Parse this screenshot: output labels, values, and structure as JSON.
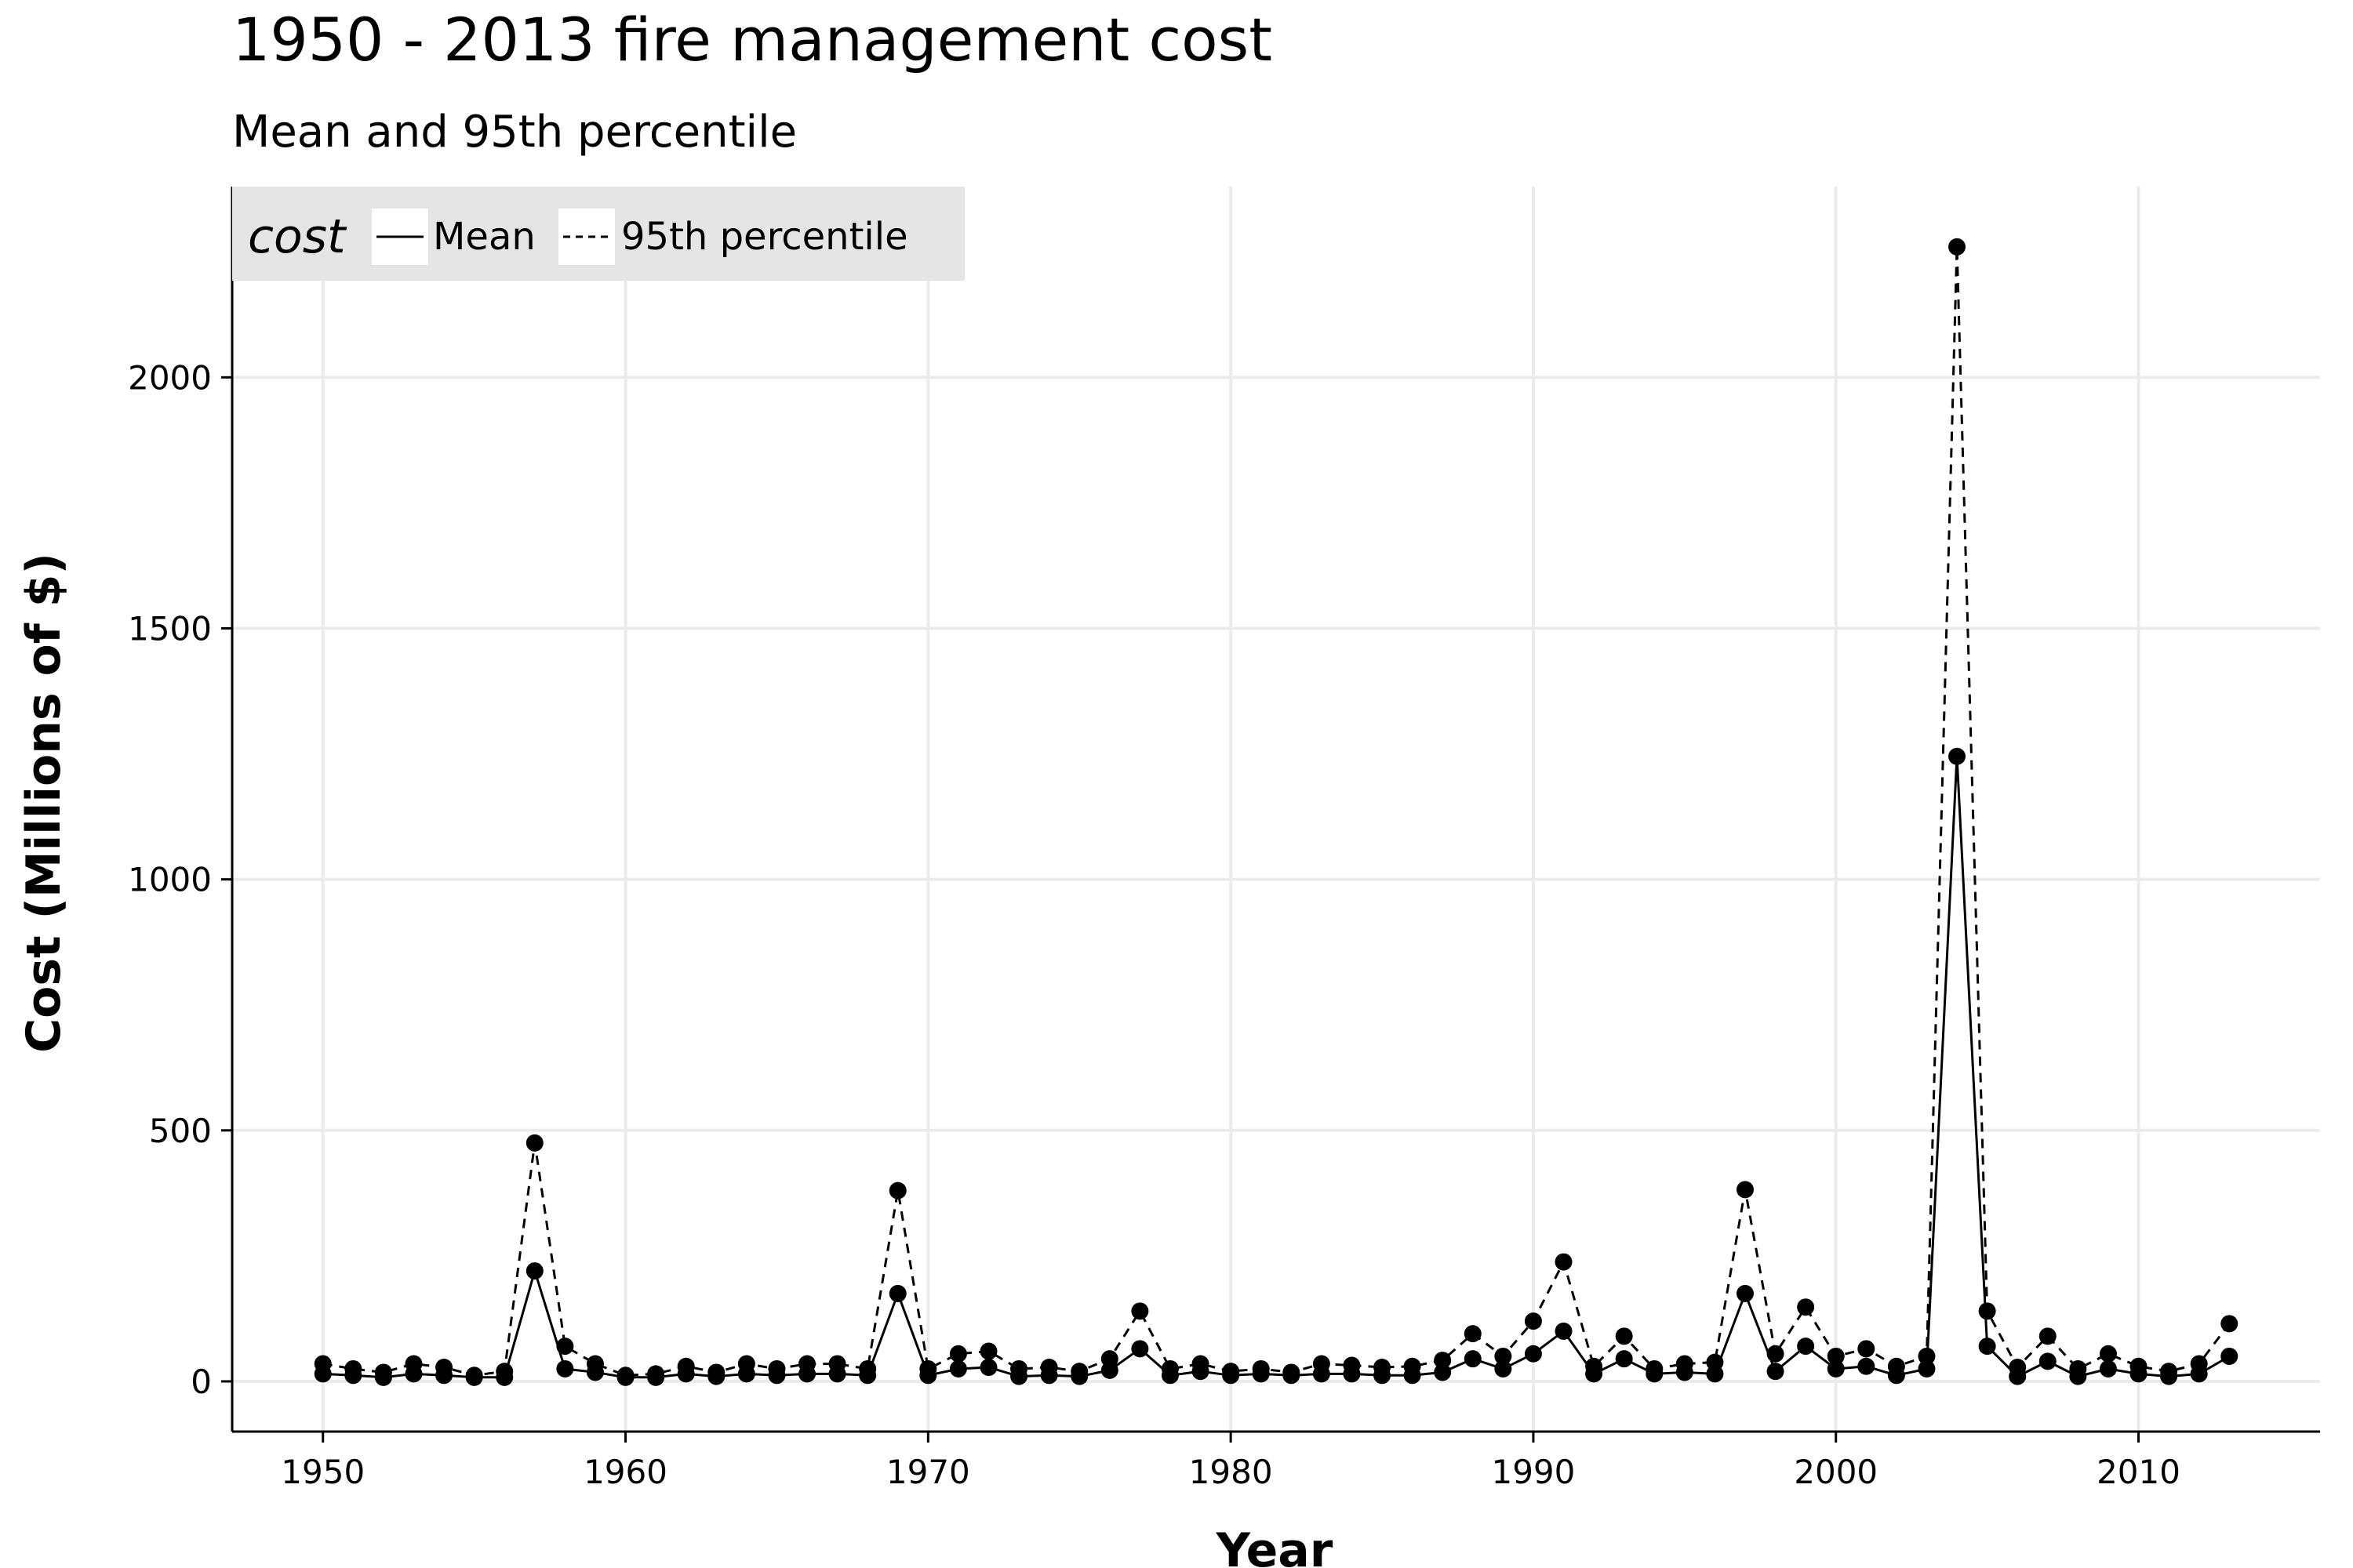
{
  "chart_data": {
    "type": "line",
    "title": "1950 - 2013 fire management cost",
    "subtitle": "Mean and 95th percentile",
    "xlabel": "Year",
    "ylabel": "Cost (Millions of $)",
    "xlim": [
      1947,
      2016
    ],
    "ylim": [
      -100,
      2380
    ],
    "x_ticks": [
      1950,
      1960,
      1970,
      1980,
      1990,
      2000,
      2010
    ],
    "y_ticks": [
      0,
      500,
      1000,
      1500,
      2000
    ],
    "grid": true,
    "legend": {
      "title": "cost",
      "placement": "top-left",
      "entries": [
        {
          "label": "Mean",
          "linestyle": "solid"
        },
        {
          "label": "95th percentile",
          "linestyle": "dashed"
        }
      ]
    },
    "x": [
      1950,
      1951,
      1952,
      1953,
      1954,
      1955,
      1956,
      1957,
      1958,
      1959,
      1960,
      1961,
      1962,
      1963,
      1964,
      1965,
      1966,
      1967,
      1968,
      1969,
      1970,
      1971,
      1972,
      1973,
      1974,
      1975,
      1976,
      1977,
      1978,
      1979,
      1980,
      1981,
      1982,
      1983,
      1984,
      1985,
      1986,
      1987,
      1988,
      1989,
      1990,
      1991,
      1992,
      1993,
      1994,
      1995,
      1996,
      1997,
      1998,
      1999,
      2000,
      2001,
      2002,
      2003,
      2004,
      2005,
      2006,
      2007,
      2008,
      2009,
      2010,
      2011,
      2012,
      2013
    ],
    "series": [
      {
        "name": "Mean",
        "linestyle": "solid",
        "color": "#000000",
        "values": [
          15,
          12,
          8,
          15,
          12,
          8,
          8,
          220,
          25,
          18,
          8,
          8,
          15,
          10,
          15,
          12,
          15,
          15,
          12,
          175,
          12,
          25,
          28,
          10,
          12,
          10,
          22,
          65,
          12,
          20,
          12,
          15,
          12,
          15,
          15,
          12,
          12,
          18,
          45,
          25,
          55,
          100,
          15,
          45,
          15,
          18,
          15,
          175,
          20,
          70,
          25,
          30,
          12,
          25,
          1245,
          70,
          10,
          40,
          10,
          25,
          15,
          10,
          15,
          50
        ]
      },
      {
        "name": "95th percentile",
        "linestyle": "dashed",
        "color": "#000000",
        "values": [
          35,
          25,
          18,
          35,
          28,
          12,
          20,
          475,
          70,
          35,
          12,
          15,
          30,
          18,
          35,
          25,
          35,
          35,
          25,
          380,
          25,
          55,
          60,
          25,
          28,
          20,
          45,
          140,
          25,
          35,
          20,
          25,
          18,
          35,
          32,
          28,
          30,
          42,
          95,
          50,
          120,
          238,
          30,
          90,
          25,
          35,
          38,
          382,
          55,
          148,
          50,
          65,
          30,
          50,
          2260,
          140,
          28,
          90,
          25,
          55,
          30,
          20,
          35,
          115
        ]
      }
    ]
  }
}
